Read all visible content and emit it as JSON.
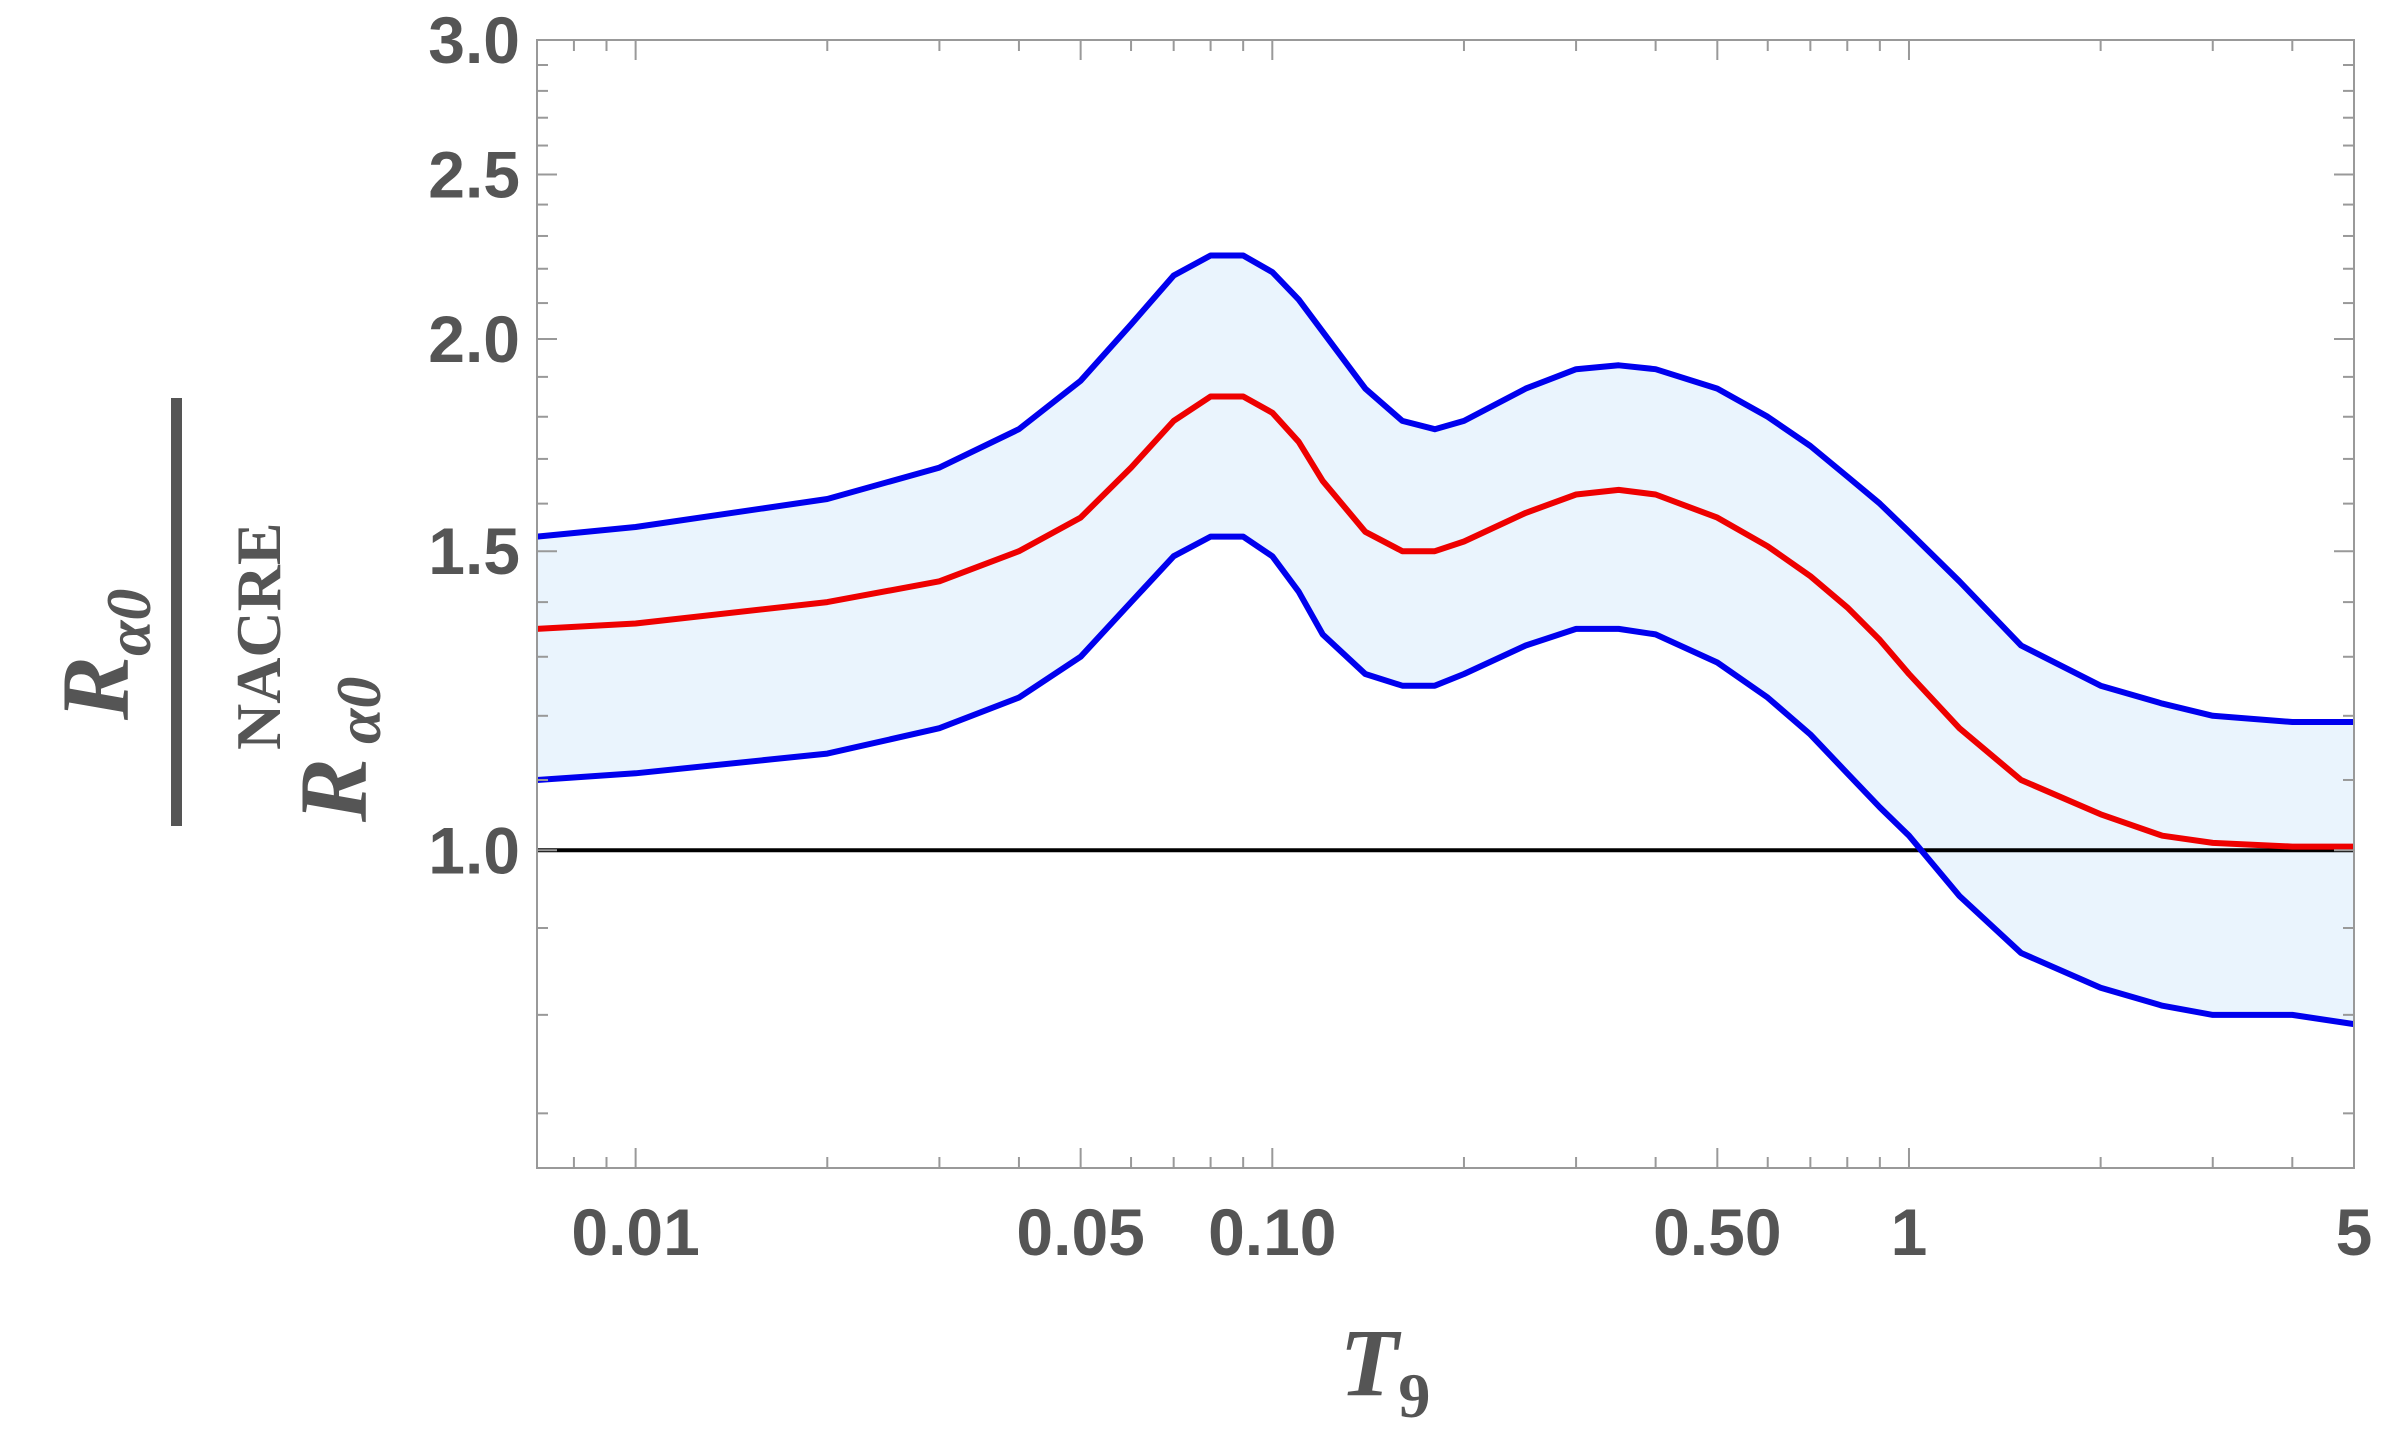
{
  "chart_data": {
    "type": "area",
    "xscale": "log",
    "yscale": "log",
    "xlim": [
      0.007,
      5
    ],
    "ylim": [
      0.65,
      3.0
    ],
    "x_ticks": [
      {
        "value": 0.01,
        "label": "0.01"
      },
      {
        "value": 0.05,
        "label": "0.05"
      },
      {
        "value": 0.1,
        "label": "0.10"
      },
      {
        "value": 0.5,
        "label": "0.50"
      },
      {
        "value": 1,
        "label": "1"
      },
      {
        "value": 5,
        "label": "5"
      }
    ],
    "y_ticks": [
      {
        "value": 1.0,
        "label": "1.0"
      },
      {
        "value": 1.5,
        "label": "1.5"
      },
      {
        "value": 2.0,
        "label": "2.0"
      },
      {
        "value": 2.5,
        "label": "2.5"
      },
      {
        "value": 3.0,
        "label": "3.0"
      }
    ],
    "xlabel": {
      "main": "T",
      "sub": "9"
    },
    "ylabel": {
      "numerator_main": "R",
      "numerator_sub": "α0",
      "denominator_main": "R",
      "denominator_sub": "α0",
      "denominator_sup": "NACRE"
    },
    "reference_line": {
      "y": 1.0,
      "color": "#000000"
    },
    "band": {
      "lower": "lower",
      "upper": "upper",
      "color": "#eaf4fd"
    },
    "x": [
      0.007,
      0.01,
      0.02,
      0.03,
      0.04,
      0.05,
      0.06,
      0.07,
      0.08,
      0.09,
      0.1,
      0.11,
      0.12,
      0.14,
      0.16,
      0.18,
      0.2,
      0.25,
      0.3,
      0.35,
      0.4,
      0.5,
      0.6,
      0.7,
      0.8,
      0.9,
      1.0,
      1.2,
      1.5,
      2.0,
      2.5,
      3.0,
      4.0,
      5.0
    ],
    "series": [
      {
        "id": "upper",
        "color": "#0000ee",
        "values": [
          1.53,
          1.55,
          1.61,
          1.68,
          1.77,
          1.89,
          2.04,
          2.18,
          2.24,
          2.24,
          2.19,
          2.11,
          2.02,
          1.87,
          1.79,
          1.77,
          1.79,
          1.87,
          1.92,
          1.93,
          1.92,
          1.87,
          1.8,
          1.73,
          1.66,
          1.6,
          1.54,
          1.44,
          1.32,
          1.25,
          1.22,
          1.2,
          1.19,
          1.19
        ]
      },
      {
        "id": "central",
        "color": "#ee0000",
        "values": [
          1.35,
          1.36,
          1.4,
          1.44,
          1.5,
          1.57,
          1.68,
          1.79,
          1.85,
          1.85,
          1.81,
          1.74,
          1.65,
          1.54,
          1.5,
          1.5,
          1.52,
          1.58,
          1.62,
          1.63,
          1.62,
          1.57,
          1.51,
          1.45,
          1.39,
          1.33,
          1.27,
          1.18,
          1.1,
          1.05,
          1.02,
          1.01,
          1.005,
          1.005
        ]
      },
      {
        "id": "lower",
        "color": "#0000ee",
        "values": [
          1.1,
          1.11,
          1.14,
          1.18,
          1.23,
          1.3,
          1.4,
          1.49,
          1.53,
          1.53,
          1.49,
          1.42,
          1.34,
          1.27,
          1.25,
          1.25,
          1.27,
          1.32,
          1.35,
          1.35,
          1.34,
          1.29,
          1.23,
          1.17,
          1.11,
          1.06,
          1.02,
          0.94,
          0.87,
          0.83,
          0.81,
          0.8,
          0.8,
          0.79
        ]
      }
    ]
  }
}
